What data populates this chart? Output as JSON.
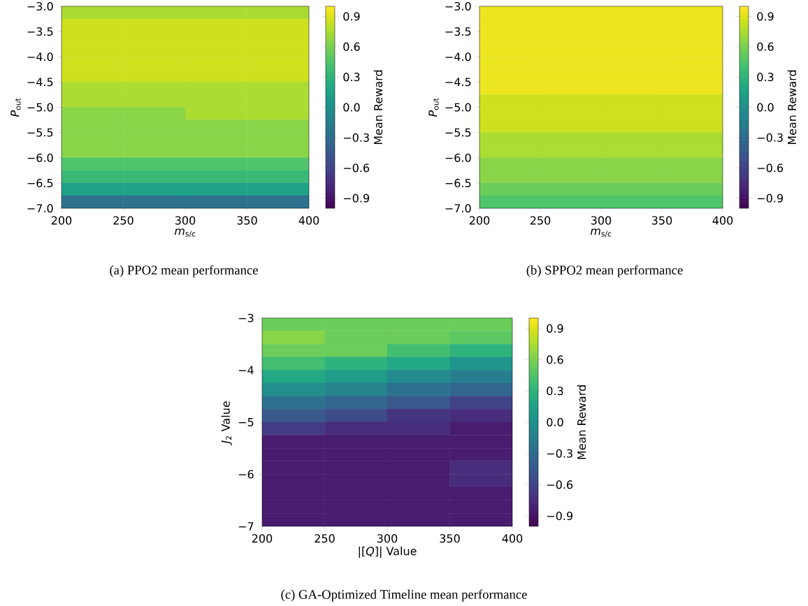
{
  "chart_data": [
    {
      "type": "heatmap",
      "title": "(a)  PPO2 mean performance",
      "xlabel": "*m*$_{s/c}$",
      "ylabel": "*P*$_{out}$",
      "clabel": "Mean Reward",
      "x": [
        225,
        275,
        325,
        375
      ],
      "y": [
        -3.125,
        -3.375,
        -3.625,
        -3.875,
        -4.125,
        -4.375,
        -4.625,
        -4.875,
        -5.125,
        -5.375,
        -5.625,
        -5.875,
        -6.125,
        -6.375,
        -6.625,
        -6.875
      ],
      "xlim": [
        200,
        400
      ],
      "xticks": [
        {
          "value": 200,
          "label": "200"
        },
        {
          "value": 250,
          "label": "250"
        },
        {
          "value": 300,
          "label": "300"
        },
        {
          "value": 350,
          "label": "350"
        },
        {
          "value": 400,
          "label": "400"
        }
      ],
      "ylim": [
        -7,
        -3
      ],
      "yticks": [
        {
          "value": -3,
          "label": "−3.0"
        },
        {
          "value": -3.5,
          "label": "−3.5"
        },
        {
          "value": -4,
          "label": "−4.0"
        },
        {
          "value": -4.5,
          "label": "−4.5"
        },
        {
          "value": -5,
          "label": "−5.0"
        },
        {
          "value": -5.5,
          "label": "−5.5"
        },
        {
          "value": -6,
          "label": "−6.0"
        },
        {
          "value": -6.5,
          "label": "−6.5"
        },
        {
          "value": -7,
          "label": "−7.0"
        }
      ],
      "cells": [
        [
          0.75,
          0.75,
          0.75,
          0.75
        ],
        [
          0.85,
          0.85,
          0.85,
          0.85
        ],
        [
          0.85,
          0.85,
          0.85,
          0.85
        ],
        [
          0.85,
          0.85,
          0.85,
          0.85
        ],
        [
          0.85,
          0.85,
          0.85,
          0.85
        ],
        [
          0.85,
          0.85,
          0.85,
          0.85
        ],
        [
          0.75,
          0.75,
          0.75,
          0.75
        ],
        [
          0.75,
          0.75,
          0.75,
          0.75
        ],
        [
          0.65,
          0.65,
          0.75,
          0.75
        ],
        [
          0.65,
          0.65,
          0.65,
          0.65
        ],
        [
          0.65,
          0.65,
          0.65,
          0.65
        ],
        [
          0.65,
          0.65,
          0.65,
          0.65
        ],
        [
          0.45,
          0.45,
          0.45,
          0.45
        ],
        [
          0.35,
          0.35,
          0.35,
          0.35
        ],
        [
          0.15,
          0.15,
          0.15,
          0.15
        ],
        [
          -0.25,
          -0.25,
          -0.25,
          -0.25
        ]
      ],
      "clim": [
        -1,
        1
      ],
      "cticks": [
        {
          "value": -0.9,
          "label": "−0.9"
        },
        {
          "value": -0.6,
          "label": "−0.6"
        },
        {
          "value": -0.3,
          "label": "−0.3"
        },
        {
          "value": 0,
          "label": "0.0"
        },
        {
          "value": 0.3,
          "label": "0.3"
        },
        {
          "value": 0.6,
          "label": "0.6"
        },
        {
          "value": 0.9,
          "label": "0.9"
        }
      ]
    },
    {
      "type": "heatmap",
      "title": "(b)  SPPO2 mean performance",
      "xlabel": "*m*$_{s/c}$",
      "ylabel": "*P*$_{out}$",
      "clabel": "Mean Reward",
      "x": [
        225,
        275,
        325,
        375
      ],
      "y": [
        -3.125,
        -3.375,
        -3.625,
        -3.875,
        -4.125,
        -4.375,
        -4.625,
        -4.875,
        -5.125,
        -5.375,
        -5.625,
        -5.875,
        -6.125,
        -6.375,
        -6.625,
        -6.875
      ],
      "xlim": [
        200,
        400
      ],
      "xticks": [
        {
          "value": 200,
          "label": "200"
        },
        {
          "value": 250,
          "label": "250"
        },
        {
          "value": 300,
          "label": "300"
        },
        {
          "value": 350,
          "label": "350"
        },
        {
          "value": 400,
          "label": "400"
        }
      ],
      "ylim": [
        -7,
        -3
      ],
      "yticks": [
        {
          "value": -3,
          "label": "−3.0"
        },
        {
          "value": -3.5,
          "label": "−3.5"
        },
        {
          "value": -4,
          "label": "−4.0"
        },
        {
          "value": -4.5,
          "label": "−4.5"
        },
        {
          "value": -5,
          "label": "−5.0"
        },
        {
          "value": -5.5,
          "label": "−5.5"
        },
        {
          "value": -6,
          "label": "−6.0"
        },
        {
          "value": -6.5,
          "label": "−6.5"
        },
        {
          "value": -7,
          "label": "−7.0"
        }
      ],
      "cells": [
        [
          0.95,
          0.95,
          0.95,
          0.95
        ],
        [
          0.95,
          0.95,
          0.95,
          0.95
        ],
        [
          0.95,
          0.95,
          0.95,
          0.95
        ],
        [
          0.95,
          0.95,
          0.95,
          0.95
        ],
        [
          0.95,
          0.95,
          0.95,
          0.95
        ],
        [
          0.95,
          0.95,
          0.95,
          0.95
        ],
        [
          0.95,
          0.95,
          0.95,
          0.95
        ],
        [
          0.85,
          0.85,
          0.85,
          0.85
        ],
        [
          0.85,
          0.85,
          0.85,
          0.85
        ],
        [
          0.85,
          0.85,
          0.85,
          0.85
        ],
        [
          0.75,
          0.75,
          0.75,
          0.75
        ],
        [
          0.75,
          0.75,
          0.75,
          0.75
        ],
        [
          0.65,
          0.65,
          0.65,
          0.65
        ],
        [
          0.65,
          0.65,
          0.65,
          0.65
        ],
        [
          0.55,
          0.55,
          0.55,
          0.55
        ],
        [
          0.45,
          0.45,
          0.45,
          0.45
        ]
      ],
      "clim": [
        -1,
        1
      ],
      "cticks": [
        {
          "value": -0.9,
          "label": "−0.9"
        },
        {
          "value": -0.6,
          "label": "−0.6"
        },
        {
          "value": -0.3,
          "label": "−0.3"
        },
        {
          "value": 0,
          "label": "0.0"
        },
        {
          "value": 0.3,
          "label": "0.3"
        },
        {
          "value": 0.6,
          "label": "0.6"
        },
        {
          "value": 0.9,
          "label": "0.9"
        }
      ]
    },
    {
      "type": "heatmap",
      "title": "(c)  GA-Optimized Timeline mean performance",
      "xlabel": "|[*Q*]| Value",
      "ylabel": "*J*$_{2}$ Value",
      "clabel": "Mean Reward",
      "x": [
        225,
        275,
        325,
        375
      ],
      "y": [
        -3.125,
        -3.375,
        -3.625,
        -3.875,
        -4.125,
        -4.375,
        -4.625,
        -4.875,
        -5.125,
        -5.375,
        -5.625,
        -5.875,
        -6.125,
        -6.375,
        -6.625,
        -6.875
      ],
      "xlim": [
        200,
        400
      ],
      "xticks": [
        {
          "value": 200,
          "label": "200"
        },
        {
          "value": 250,
          "label": "250"
        },
        {
          "value": 300,
          "label": "300"
        },
        {
          "value": 350,
          "label": "350"
        },
        {
          "value": 400,
          "label": "400"
        }
      ],
      "ylim": [
        -7,
        -3
      ],
      "yticks": [
        {
          "value": -3,
          "label": "−3"
        },
        {
          "value": -4,
          "label": "−4"
        },
        {
          "value": -5,
          "label": "−5"
        },
        {
          "value": -6,
          "label": "−6"
        },
        {
          "value": -7,
          "label": "−7"
        }
      ],
      "cells": [
        [
          0.55,
          0.55,
          0.55,
          0.55
        ],
        [
          0.65,
          0.55,
          0.55,
          0.5
        ],
        [
          0.55,
          0.55,
          0.4,
          0.3
        ],
        [
          0.4,
          0.3,
          0.2,
          0.05
        ],
        [
          0.2,
          0.1,
          -0.05,
          -0.15
        ],
        [
          0.0,
          -0.1,
          -0.25,
          -0.35
        ],
        [
          -0.25,
          -0.35,
          -0.45,
          -0.6
        ],
        [
          -0.45,
          -0.55,
          -0.7,
          -0.75
        ],
        [
          -0.65,
          -0.75,
          -0.75,
          -0.85
        ],
        [
          -0.85,
          -0.85,
          -0.85,
          -0.85
        ],
        [
          -0.85,
          -0.85,
          -0.85,
          -0.85
        ],
        [
          -0.85,
          -0.85,
          -0.85,
          -0.75
        ],
        [
          -0.85,
          -0.85,
          -0.85,
          -0.75
        ],
        [
          -0.85,
          -0.85,
          -0.85,
          -0.85
        ],
        [
          -0.85,
          -0.85,
          -0.85,
          -0.85
        ],
        [
          -0.85,
          -0.85,
          -0.85,
          -0.85
        ]
      ],
      "clim": [
        -1,
        1
      ],
      "cticks": [
        {
          "value": -0.9,
          "label": "−0.9"
        },
        {
          "value": -0.6,
          "label": "−0.6"
        },
        {
          "value": -0.3,
          "label": "−0.3"
        },
        {
          "value": 0,
          "label": "0.0"
        },
        {
          "value": 0.3,
          "label": "0.3"
        },
        {
          "value": 0.6,
          "label": "0.6"
        },
        {
          "value": 0.9,
          "label": "0.9"
        }
      ]
    }
  ]
}
